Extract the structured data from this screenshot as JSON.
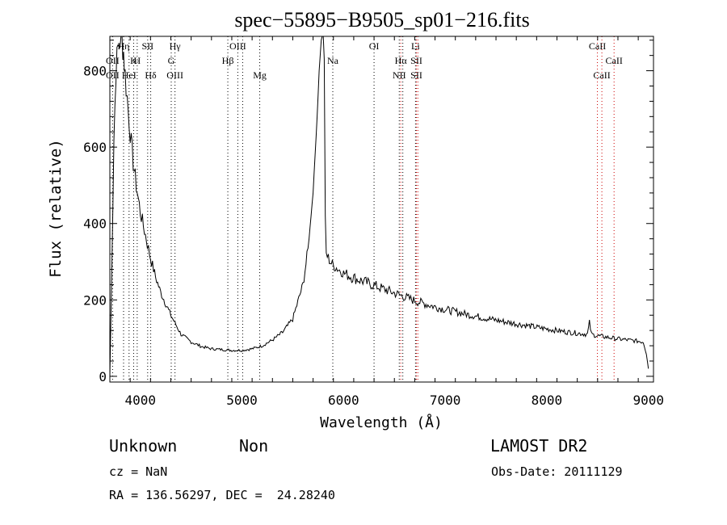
{
  "chart_data": {
    "type": "line",
    "title": "spec−55895−B9505_sp01−216.fits",
    "xlabel": "Wavelength (Å)",
    "ylabel": "Flux (relative)",
    "xlim": [
      3700,
      9050
    ],
    "ylim": [
      -15,
      890
    ],
    "x_ticks": [
      4000,
      5000,
      6000,
      7000,
      8000,
      9000
    ],
    "x_tick_labels": [
      "4000",
      "5000",
      "6000",
      "7000",
      "8000",
      "9000"
    ],
    "y_ticks": [
      0,
      200,
      400,
      600,
      800
    ],
    "y_tick_labels": [
      "0",
      "200",
      "400",
      "600",
      "800"
    ],
    "grid": false,
    "line_color": "#000000",
    "marker_color": "#cc0000",
    "series": [
      {
        "x": [
          3700,
          3720,
          3740,
          3760,
          3780,
          3800,
          3820,
          3835,
          3850,
          3870,
          3890,
          3910,
          3930,
          3960,
          4000,
          4050,
          4100,
          4150,
          4200,
          4300,
          4400,
          4500,
          4600,
          4700,
          4800,
          4900,
          5000,
          5100,
          5200,
          5300,
          5400,
          5500,
          5600,
          5650,
          5700,
          5740,
          5760,
          5780,
          5790,
          5800,
          5810,
          5820,
          5830,
          5850,
          5870,
          5900,
          5950,
          6000,
          6100,
          6200,
          6300,
          6400,
          6500,
          6600,
          6700,
          6800,
          6900,
          7000,
          7200,
          7400,
          7600,
          7800,
          8000,
          8200,
          8400,
          8420,
          8440,
          8500,
          8600,
          8700,
          8800,
          8900,
          8950,
          8980,
          9000
        ],
        "y": [
          0,
          300,
          620,
          800,
          860,
          880,
          880,
          850,
          790,
          730,
          670,
          610,
          560,
          500,
          430,
          370,
          310,
          260,
          220,
          160,
          110,
          90,
          78,
          72,
          70,
          68,
          68,
          72,
          80,
          95,
          115,
          150,
          240,
          330,
          480,
          680,
          800,
          880,
          890,
          890,
          830,
          420,
          320,
          310,
          300,
          290,
          280,
          270,
          258,
          248,
          238,
          228,
          218,
          208,
          198,
          190,
          182,
          175,
          163,
          152,
          142,
          133,
          124,
          116,
          110,
          140,
          110,
          106,
          102,
          98,
          95,
          92,
          90,
          60,
          20
        ]
      }
    ],
    "lines": [
      {
        "x": 3727,
        "label_top": "",
        "label_mid": "OII",
        "label_bot": "OII",
        "red": false
      },
      {
        "x": 3835,
        "label_top": "Hη",
        "label_mid": "",
        "label_bot": "",
        "red": false
      },
      {
        "x": 3889,
        "label_top": "",
        "label_mid": "",
        "label_bot": "HeI",
        "red": false
      },
      {
        "x": 3934,
        "label_top": "",
        "label_mid": "K",
        "label_bot": "",
        "red": false
      },
      {
        "x": 3969,
        "label_top": "",
        "label_mid": "H",
        "label_bot": "",
        "red": false
      },
      {
        "x": 4072,
        "label_top": "SII",
        "label_mid": "",
        "label_bot": "",
        "red": false
      },
      {
        "x": 4102,
        "label_top": "",
        "label_mid": "",
        "label_bot": "Hδ",
        "red": false
      },
      {
        "x": 4304,
        "label_top": "",
        "label_mid": "G",
        "label_bot": "",
        "red": false
      },
      {
        "x": 4341,
        "label_top": "Hγ",
        "label_mid": "",
        "label_bot": "OIII",
        "red": false
      },
      {
        "x": 4861,
        "label_top": "",
        "label_mid": "Hβ",
        "label_bot": "",
        "red": false
      },
      {
        "x": 4959,
        "label_top": "OIII",
        "label_mid": "",
        "label_bot": "",
        "red": false
      },
      {
        "x": 5007,
        "label_top": "",
        "label_mid": "",
        "label_bot": "",
        "red": false
      },
      {
        "x": 5175,
        "label_top": "",
        "label_mid": "",
        "label_bot": "Mg",
        "red": false
      },
      {
        "x": 5894,
        "label_top": "",
        "label_mid": "Na",
        "label_bot": "",
        "red": false
      },
      {
        "x": 6300,
        "label_top": "OI",
        "label_mid": "",
        "label_bot": "",
        "red": false
      },
      {
        "x": 6548,
        "label_top": "",
        "label_mid": "",
        "label_bot": "NII",
        "red": false
      },
      {
        "x": 6563,
        "label_top": "",
        "label_mid": "Hα",
        "label_bot": "",
        "red": true
      },
      {
        "x": 6583,
        "label_top": "",
        "label_mid": "",
        "label_bot": "",
        "red": false
      },
      {
        "x": 6708,
        "label_top": "Li",
        "label_mid": "",
        "label_bot": "",
        "red": false
      },
      {
        "x": 6717,
        "label_top": "",
        "label_mid": "SII",
        "label_bot": "SII",
        "red": true
      },
      {
        "x": 6731,
        "label_top": "",
        "label_mid": "",
        "label_bot": "",
        "red": true
      },
      {
        "x": 8498,
        "label_top": "CaII",
        "label_mid": "",
        "label_bot": "",
        "red": true
      },
      {
        "x": 8542,
        "label_top": "",
        "label_mid": "",
        "label_bot": "CaII",
        "red": true
      },
      {
        "x": 8662,
        "label_top": "",
        "label_mid": "CaII",
        "label_bot": "",
        "red": true
      }
    ]
  },
  "info": {
    "class": "Unknown",
    "subclass": "Non",
    "survey": "LAMOST DR2",
    "cz": "cz = NaN",
    "obs_date": "Obs-Date: 20111129",
    "coords": "RA = 136.56297, DEC =  24.28240"
  }
}
